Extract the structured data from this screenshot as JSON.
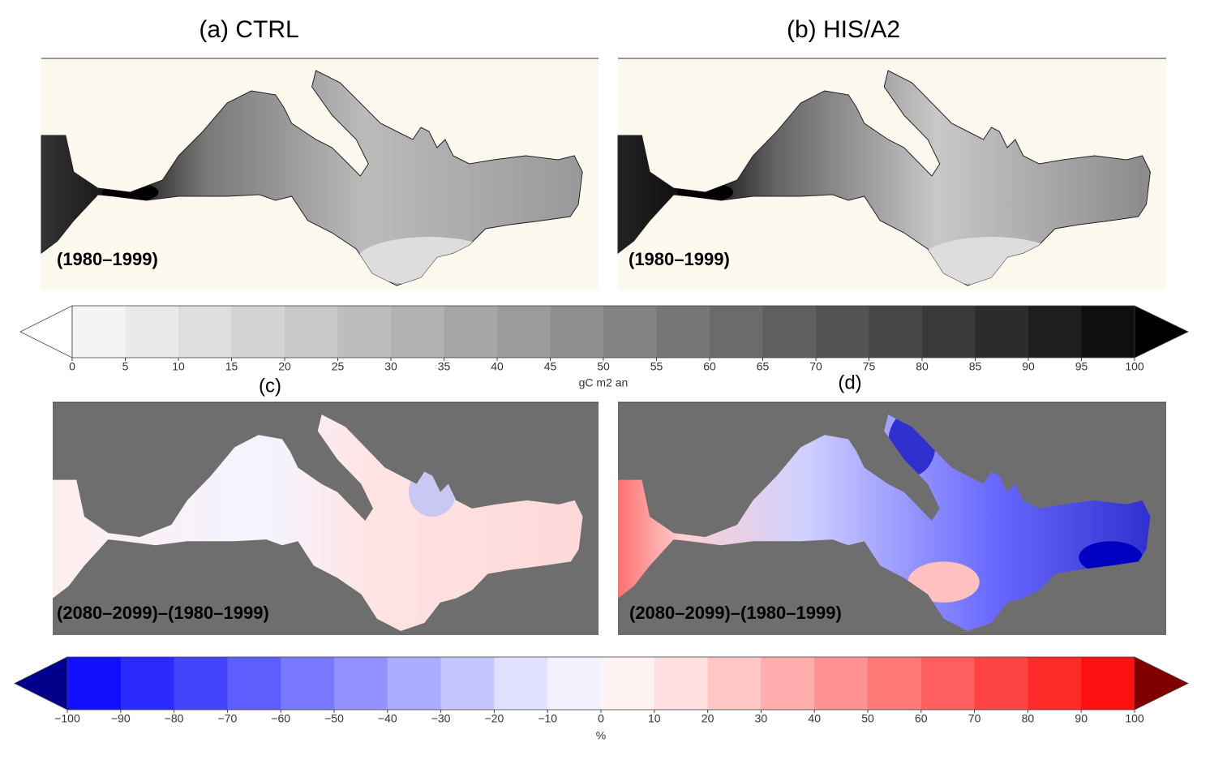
{
  "panels": [
    {
      "title": "(a) CTRL",
      "period": "(1980–1999)"
    },
    {
      "title": "(b) HIS/A2",
      "period": "(1980–1999)"
    },
    {
      "title": "(c)",
      "period": "(2080–2099)–(1980–1999)"
    },
    {
      "title": "(d)",
      "period": "(2080–2099)–(1980–1999)"
    }
  ],
  "colorbars": [
    {
      "label": "gC m2 an",
      "ticks": [
        0,
        5,
        10,
        15,
        20,
        25,
        30,
        35,
        40,
        45,
        50,
        55,
        60,
        65,
        70,
        75,
        80,
        85,
        90,
        95,
        100
      ],
      "colors": [
        "#f4f4f4",
        "#eaeaea",
        "#dedede",
        "#d3d3d3",
        "#c8c8c8",
        "#bdbdbd",
        "#b2b2b2",
        "#a6a6a6",
        "#9b9b9b",
        "#8f8f8f",
        "#838383",
        "#777777",
        "#6b6b6b",
        "#5f5f5f",
        "#535353",
        "#464646",
        "#393939",
        "#2c2c2c",
        "#1e1e1e",
        "#0f0f0f"
      ],
      "extend_colors": [
        "#ffffff",
        "#000000"
      ]
    },
    {
      "label": "%",
      "ticks": [
        {
          "value": -100,
          "label": "−100"
        },
        {
          "value": -90,
          "label": "−90"
        },
        {
          "value": -80,
          "label": "−80"
        },
        {
          "value": -70,
          "label": "−70"
        },
        {
          "value": -60,
          "label": "−60"
        },
        {
          "value": -50,
          "label": "−50"
        },
        {
          "value": -40,
          "label": "−40"
        },
        {
          "value": -30,
          "label": "−30"
        },
        {
          "value": -20,
          "label": "−20"
        },
        {
          "value": -10,
          "label": "−10"
        },
        0,
        10,
        20,
        30,
        40,
        50,
        60,
        70,
        80,
        90,
        100
      ],
      "colors": [
        "#1010ff",
        "#2a2aff",
        "#4444ff",
        "#5e5eff",
        "#7878ff",
        "#9292ff",
        "#acacff",
        "#c6c6ff",
        "#e0e0ff",
        "#f2f2ff",
        "#fff2f2",
        "#ffe0e0",
        "#ffc6c6",
        "#ffacac",
        "#ff9292",
        "#ff7878",
        "#ff5e5e",
        "#ff4444",
        "#ff2a2a",
        "#ff1010"
      ],
      "extend_colors": [
        "#00008b",
        "#800000"
      ]
    }
  ]
}
